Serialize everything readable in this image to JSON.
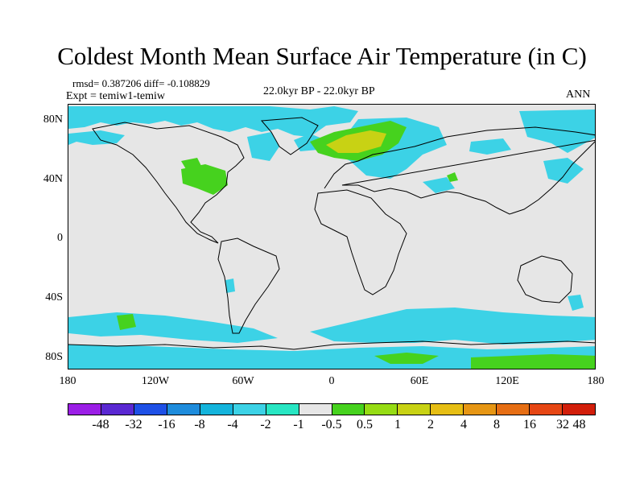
{
  "title": "Coldest Month Mean Surface Air Temperature (in C)",
  "stats": "rmsd= 0.387206 diff= -0.108829",
  "experiment": "Expt = temiw1-temiw",
  "period": "22.0kyr BP - 22.0kyr BP",
  "season": "ANN",
  "map": {
    "y_ticks": [
      "80N",
      "40N",
      "0",
      "40S",
      "80S"
    ],
    "x_ticks": [
      "180",
      "120W",
      "60W",
      "0",
      "60E",
      "120E",
      "180"
    ],
    "background_color": "#e6e6e6"
  },
  "colorbar": {
    "colors": [
      "#9b1ee6",
      "#5a28d2",
      "#1e50e6",
      "#1e8cdc",
      "#14b4dc",
      "#3cd2e6",
      "#28e6c3",
      "#e6e6e6",
      "#46d21e",
      "#96dc14",
      "#c8d214",
      "#e6be14",
      "#e69614",
      "#e66e14",
      "#e64614",
      "#d21e0a"
    ],
    "labels": [
      "-48",
      "-32",
      "-16",
      "-8",
      "-4",
      "-2",
      "-1",
      "-0.5",
      "0.5",
      "1",
      "2",
      "4",
      "8",
      "16",
      "32",
      "48"
    ]
  }
}
